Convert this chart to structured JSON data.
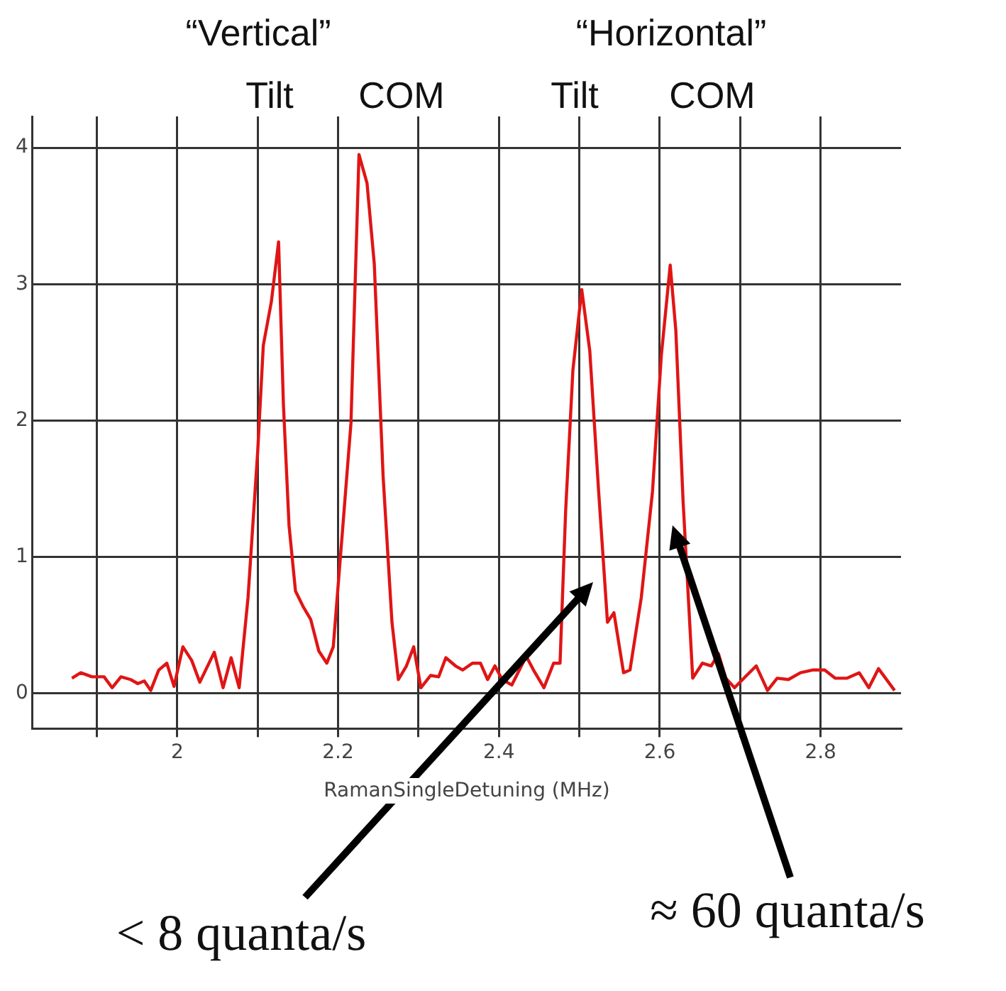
{
  "chart_data": {
    "type": "line",
    "xlabel": "RamanSingleDetuning (MHz)",
    "x": [
      1.869,
      1.88,
      1.894,
      1.909,
      1.919,
      1.93,
      1.942,
      1.951,
      1.959,
      1.967,
      1.977,
      1.987,
      1.996,
      2.007,
      2.018,
      2.028,
      2.046,
      2.057,
      2.067,
      2.077,
      2.088,
      2.1,
      2.107,
      2.117,
      2.126,
      2.132,
      2.139,
      2.147,
      2.157,
      2.166,
      2.176,
      2.186,
      2.194,
      2.206,
      2.216,
      2.226,
      2.236,
      2.245,
      2.256,
      2.267,
      2.275,
      2.285,
      2.294,
      2.303,
      2.315,
      2.325,
      2.334,
      2.346,
      2.355,
      2.367,
      2.377,
      2.386,
      2.395,
      2.404,
      2.416,
      2.434,
      2.443,
      2.456,
      2.468,
      2.476,
      2.483,
      2.492,
      2.503,
      2.513,
      2.524,
      2.535,
      2.543,
      2.555,
      2.563,
      2.577,
      2.591,
      2.602,
      2.613,
      2.62,
      2.629,
      2.641,
      2.653,
      2.664,
      2.673,
      2.682,
      2.693,
      2.708,
      2.72,
      2.734,
      2.746,
      2.76,
      2.775,
      2.79,
      2.805,
      2.818,
      2.833,
      2.848,
      2.86,
      2.872,
      2.892
    ],
    "series": [
      {
        "color": "#e01515",
        "values": [
          0.11,
          0.15,
          0.12,
          0.12,
          0.04,
          0.12,
          0.1,
          0.07,
          0.09,
          0.02,
          0.17,
          0.22,
          0.05,
          0.34,
          0.24,
          0.08,
          0.3,
          0.04,
          0.26,
          0.04,
          0.7,
          1.77,
          2.55,
          2.87,
          3.31,
          2.12,
          1.23,
          0.75,
          0.63,
          0.54,
          0.31,
          0.22,
          0.34,
          1.23,
          1.98,
          3.95,
          3.74,
          3.15,
          1.59,
          0.52,
          0.1,
          0.2,
          0.34,
          0.04,
          0.13,
          0.12,
          0.26,
          0.2,
          0.17,
          0.22,
          0.22,
          0.1,
          0.2,
          0.1,
          0.06,
          0.27,
          0.17,
          0.04,
          0.22,
          0.22,
          1.34,
          2.37,
          2.96,
          2.51,
          1.48,
          0.52,
          0.59,
          0.15,
          0.17,
          0.7,
          1.48,
          2.48,
          3.14,
          2.66,
          1.41,
          0.11,
          0.22,
          0.2,
          0.29,
          0.11,
          0.04,
          0.13,
          0.2,
          0.02,
          0.11,
          0.1,
          0.15,
          0.17,
          0.17,
          0.11,
          0.11,
          0.15,
          0.04,
          0.18,
          0.02
        ]
      }
    ],
    "xlim": [
      1.82,
      2.9
    ],
    "ylim": [
      -0.26,
      4.23
    ],
    "xticks": [
      {
        "value": 1.9,
        "label": null
      },
      2,
      {
        "value": 2.1,
        "label": null
      },
      2.2,
      {
        "value": 2.3,
        "label": null
      },
      2.4,
      {
        "value": 2.5,
        "label": null
      },
      2.6,
      {
        "value": 2.7,
        "label": null
      },
      2.8
    ],
    "yticks": [
      0,
      1,
      2,
      3,
      4
    ],
    "grid": true,
    "marker": "none",
    "line_style": "solid",
    "annotations": [
      "“Vertical”",
      "“Horizontal”",
      "Tilt",
      "COM",
      "Tilt",
      "COM",
      "< 8 quanta/s",
      "≈ 60 quanta/s"
    ]
  }
}
